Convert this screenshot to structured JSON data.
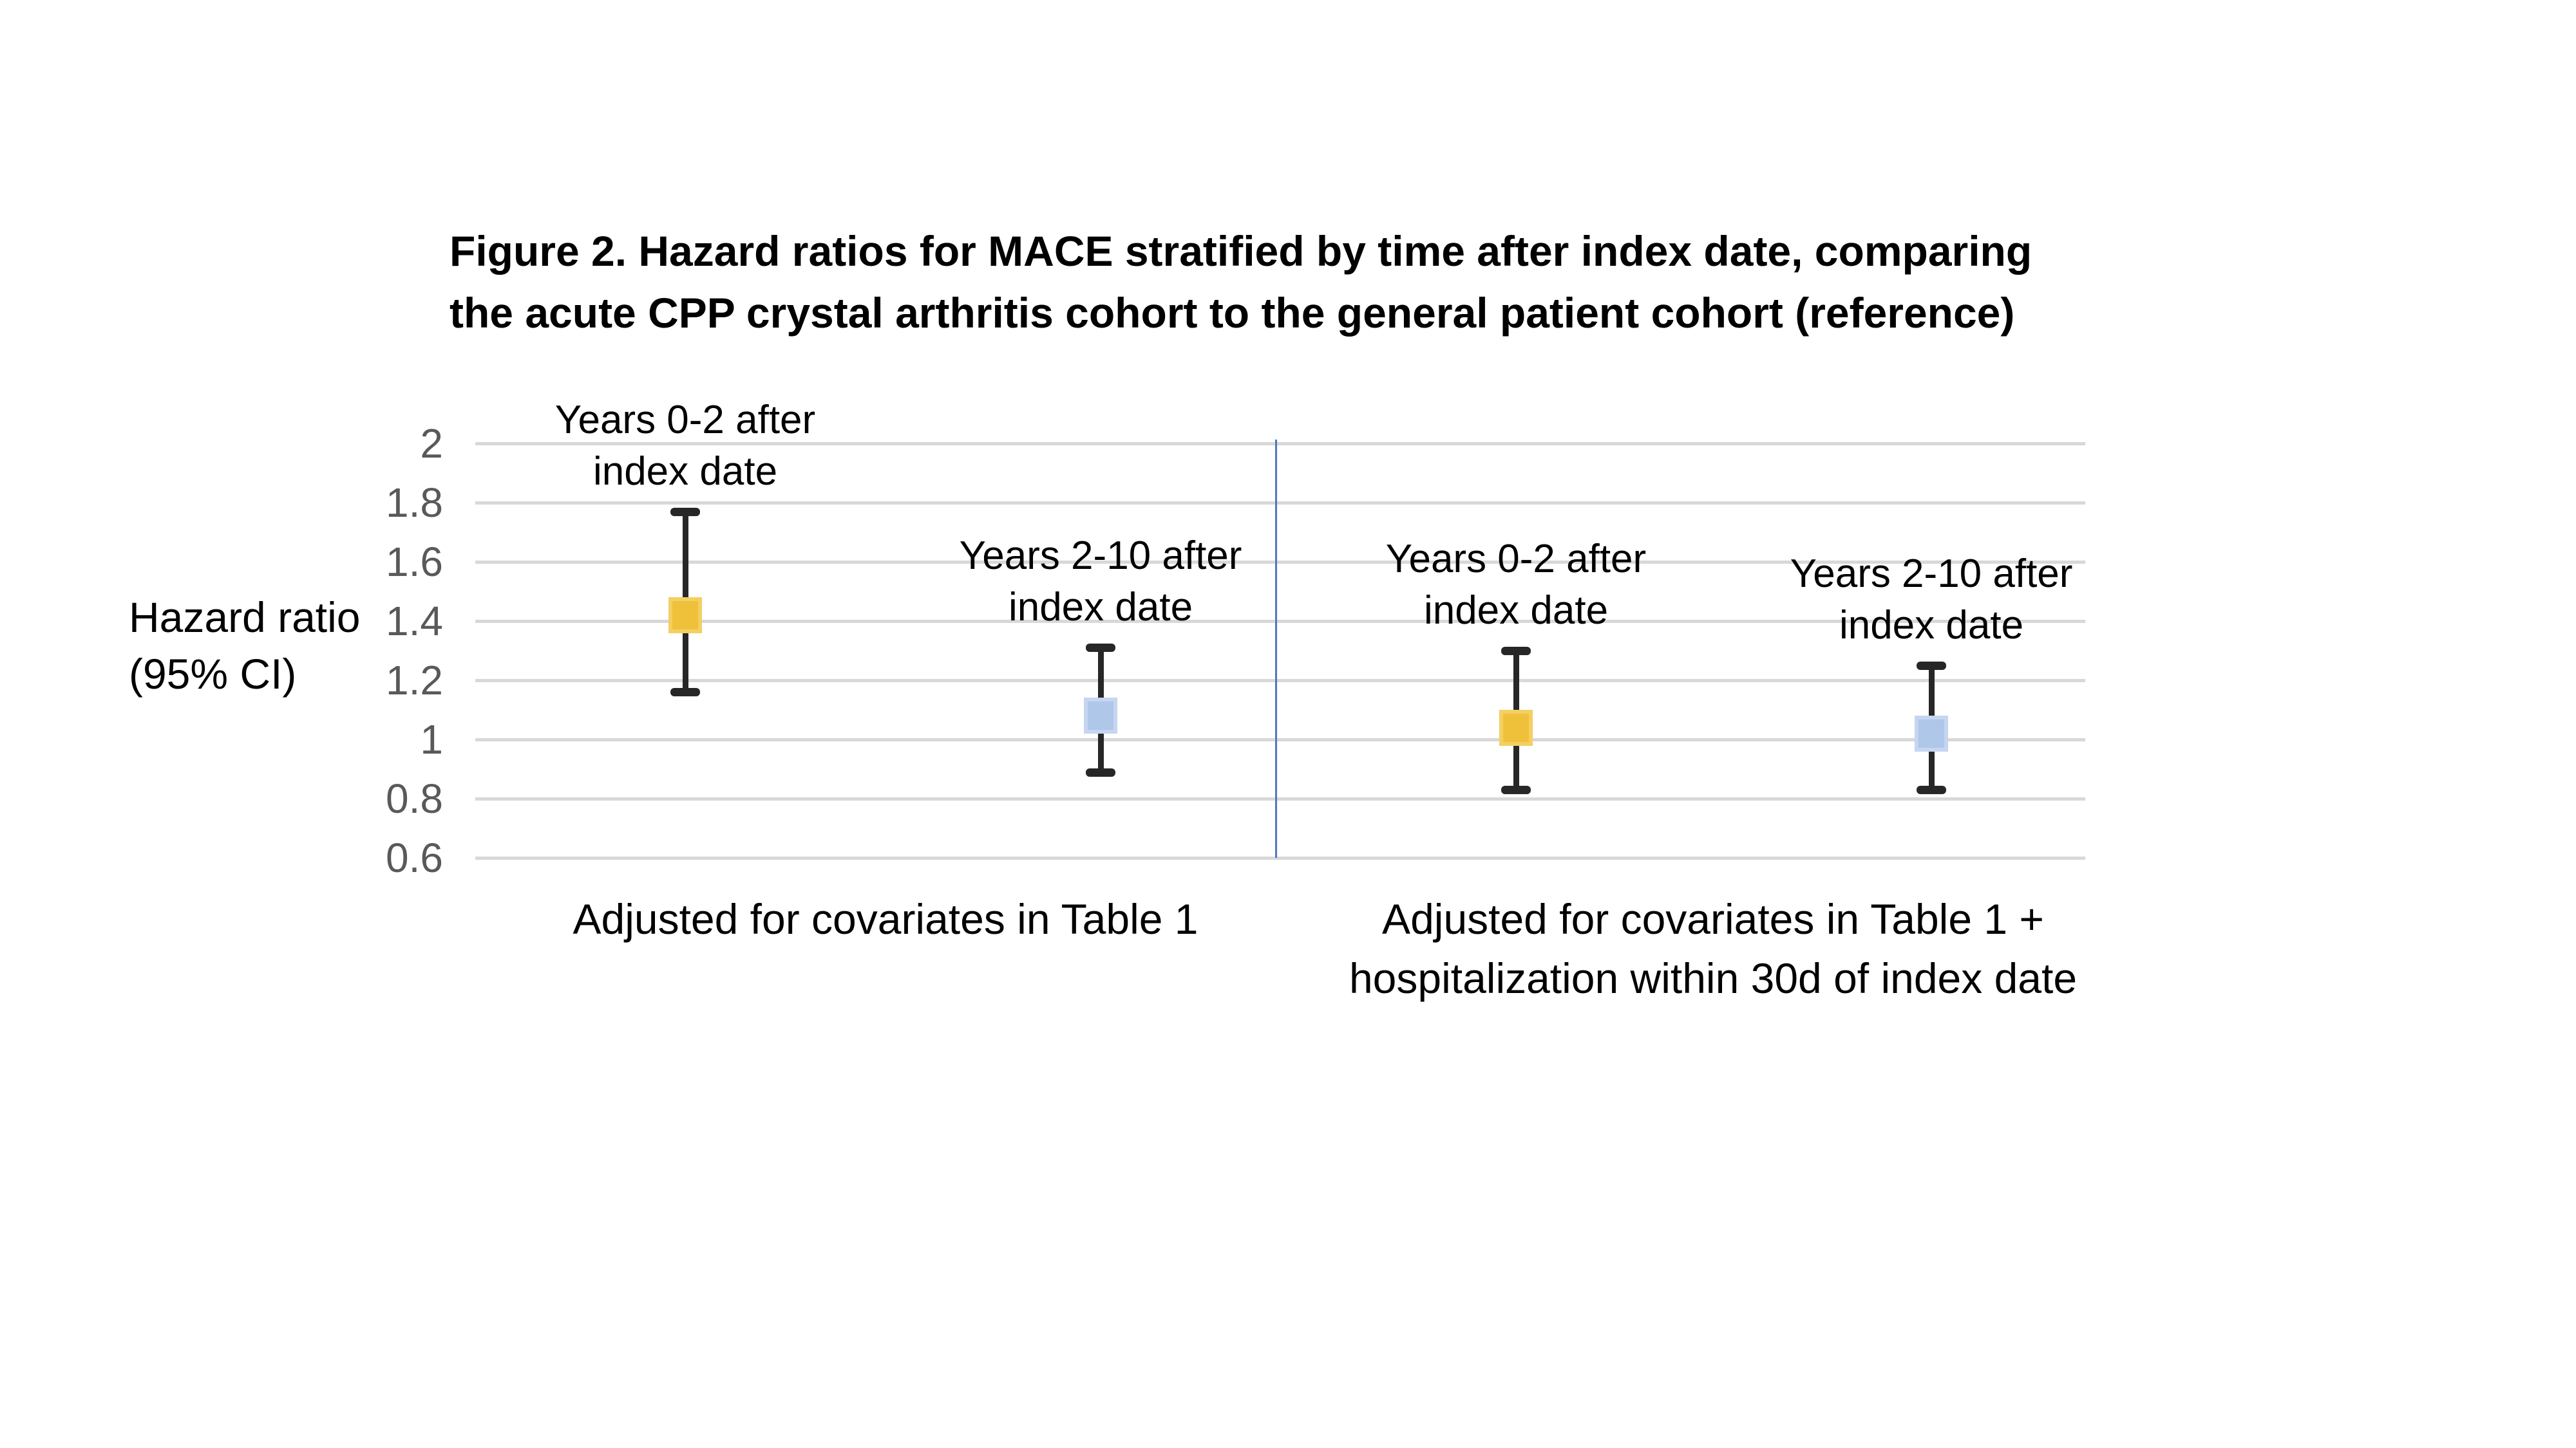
{
  "figure": {
    "title_line1": "Figure 2. Hazard ratios for MACE stratified by time after index date, comparing",
    "title_line2": "the acute CPP crystal arthritis cohort to the general patient cohort (reference)",
    "y_axis_label_line1": "Hazard ratio",
    "y_axis_label_line2": "(95% CI)"
  },
  "chart_data": {
    "type": "scatter",
    "subtype": "error-bar-forest-plot",
    "title": "Figure 2. Hazard ratios for MACE stratified by time after index date, comparing the acute CPP crystal arthritis cohort to the general patient cohort (reference)",
    "ylabel": "Hazard ratio (95% CI)",
    "xlabel": "",
    "grid": true,
    "legend": false,
    "y_axis": {
      "min": 0.6,
      "max": 2.0,
      "tick_step": 0.2,
      "tick_labels": [
        "2",
        "1.8",
        "1.6",
        "1.4",
        "1.2",
        "1",
        "0.8",
        "0.6"
      ]
    },
    "panels": [
      {
        "label": "Adjusted for covariates in Table 1",
        "label_lines": [
          "Adjusted for covariates in Table 1"
        ]
      },
      {
        "label": "Adjusted for covariates in Table 1 + hospitalization within 30d of index date",
        "label_lines": [
          "Adjusted for covariates in Table 1 +",
          "hospitalization within 30d of index date"
        ]
      }
    ],
    "points": [
      {
        "panel": 0,
        "label_lines": [
          "Years 0-2 after",
          "index date"
        ],
        "hr": 1.42,
        "ci_low": 1.16,
        "ci_high": 1.77,
        "series": "years_0_2"
      },
      {
        "panel": 0,
        "label_lines": [
          "Years 2-10 after",
          "index date"
        ],
        "hr": 1.08,
        "ci_low": 0.89,
        "ci_high": 1.31,
        "series": "years_2_10"
      },
      {
        "panel": 1,
        "label_lines": [
          "Years 0-2 after",
          "index date"
        ],
        "hr": 1.04,
        "ci_low": 0.83,
        "ci_high": 1.3,
        "series": "years_0_2"
      },
      {
        "panel": 1,
        "label_lines": [
          "Years 2-10 after",
          "index date"
        ],
        "hr": 1.02,
        "ci_low": 0.83,
        "ci_high": 1.25,
        "series": "years_2_10"
      }
    ],
    "colors": {
      "years_0_2_fill": "#EFC13B",
      "years_0_2_border": "#F4CF62",
      "years_2_10_fill": "#AFC7E8",
      "years_2_10_border": "#C6D6F0",
      "whisker": "#272727",
      "gridline": "#D8D8D8",
      "panel_separator": "#4E79C0",
      "tick_text": "#595959"
    }
  }
}
